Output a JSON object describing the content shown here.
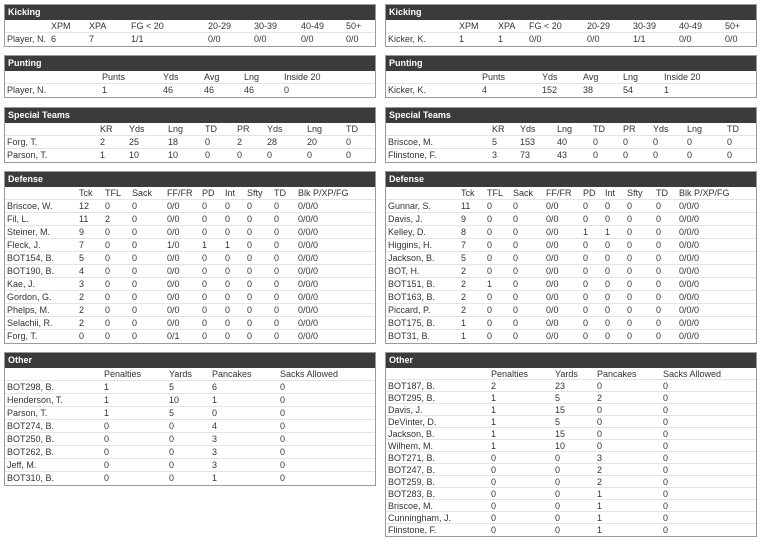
{
  "left": [
    {
      "title": "Kicking",
      "headers": [
        "XPM",
        "XPA",
        "FG < 20",
        "20-29",
        "30-39",
        "40-49",
        "50+"
      ],
      "rows": [
        [
          "Player, N.",
          "6",
          "7",
          "1/1",
          "0/0",
          "0/0",
          "0/0",
          "0/0"
        ]
      ]
    },
    {
      "title": "Punting",
      "headers": [
        "Punts",
        "Yds",
        "Avg",
        "Lng",
        "Inside 20"
      ],
      "rows": [
        [
          "Player, N.",
          "1",
          "46",
          "46",
          "46",
          "0"
        ]
      ]
    },
    {
      "title": "Special Teams",
      "headers": [
        "KR",
        "Yds",
        "Lng",
        "TD",
        "PR",
        "Yds",
        "Lng",
        "TD"
      ],
      "rows": [
        [
          "Forg, T.",
          "2",
          "25",
          "18",
          "0",
          "2",
          "28",
          "20",
          "0"
        ],
        [
          "Parson, T.",
          "1",
          "10",
          "10",
          "0",
          "0",
          "0",
          "0",
          "0"
        ]
      ]
    },
    {
      "title": "Defense",
      "headers": [
        "Tck",
        "TFL",
        "Sack",
        "FF/FR",
        "PD",
        "Int",
        "Sfty",
        "TD",
        "Blk P/XP/FG"
      ],
      "rows": [
        [
          "Briscoe, W.",
          "12",
          "0",
          "0",
          "0/0",
          "0",
          "0",
          "0",
          "0",
          "0/0/0"
        ],
        [
          "Fil, L.",
          "11",
          "2",
          "0",
          "0/0",
          "0",
          "0",
          "0",
          "0",
          "0/0/0"
        ],
        [
          "Steiner, M.",
          "9",
          "0",
          "0",
          "0/0",
          "0",
          "0",
          "0",
          "0",
          "0/0/0"
        ],
        [
          "Fleck, J.",
          "7",
          "0",
          "0",
          "1/0",
          "1",
          "1",
          "0",
          "0",
          "0/0/0"
        ],
        [
          "BOT154, B.",
          "5",
          "0",
          "0",
          "0/0",
          "0",
          "0",
          "0",
          "0",
          "0/0/0"
        ],
        [
          "BOT190, B.",
          "4",
          "0",
          "0",
          "0/0",
          "0",
          "0",
          "0",
          "0",
          "0/0/0"
        ],
        [
          "Kae, J.",
          "3",
          "0",
          "0",
          "0/0",
          "0",
          "0",
          "0",
          "0",
          "0/0/0"
        ],
        [
          "Gordon, G.",
          "2",
          "0",
          "0",
          "0/0",
          "0",
          "0",
          "0",
          "0",
          "0/0/0"
        ],
        [
          "Phelps, M.",
          "2",
          "0",
          "0",
          "0/0",
          "0",
          "0",
          "0",
          "0",
          "0/0/0"
        ],
        [
          "Selachii, R.",
          "2",
          "0",
          "0",
          "0/0",
          "0",
          "0",
          "0",
          "0",
          "0/0/0"
        ],
        [
          "Forg, T.",
          "0",
          "0",
          "0",
          "0/1",
          "0",
          "0",
          "0",
          "0",
          "0/0/0"
        ]
      ]
    },
    {
      "title": "Other",
      "headers": [
        "Penalties",
        "Yards",
        "Pancakes",
        "Sacks Allowed"
      ],
      "rows": [
        [
          "BOT298, B.",
          "1",
          "5",
          "6",
          "0"
        ],
        [
          "Henderson, T.",
          "1",
          "10",
          "1",
          "0"
        ],
        [
          "Parson, T.",
          "1",
          "5",
          "0",
          "0"
        ],
        [
          "BOT274, B.",
          "0",
          "0",
          "4",
          "0"
        ],
        [
          "BOT250, B.",
          "0",
          "0",
          "3",
          "0"
        ],
        [
          "BOT262, B.",
          "0",
          "0",
          "3",
          "0"
        ],
        [
          "Jeff, M.",
          "0",
          "0",
          "3",
          "0"
        ],
        [
          "BOT310, B.",
          "0",
          "0",
          "1",
          "0"
        ]
      ]
    }
  ],
  "right": [
    {
      "title": "Kicking",
      "headers": [
        "XPM",
        "XPA",
        "FG < 20",
        "20-29",
        "30-39",
        "40-49",
        "50+"
      ],
      "rows": [
        [
          "Kicker, K.",
          "1",
          "1",
          "0/0",
          "0/0",
          "1/1",
          "0/0",
          "0/0"
        ]
      ]
    },
    {
      "title": "Punting",
      "headers": [
        "Punts",
        "Yds",
        "Avg",
        "Lng",
        "Inside 20"
      ],
      "rows": [
        [
          "Kicker, K.",
          "4",
          "152",
          "38",
          "54",
          "1"
        ]
      ]
    },
    {
      "title": "Special Teams",
      "headers": [
        "KR",
        "Yds",
        "Lng",
        "TD",
        "PR",
        "Yds",
        "Lng",
        "TD"
      ],
      "rows": [
        [
          "Briscoe, M.",
          "5",
          "153",
          "40",
          "0",
          "0",
          "0",
          "0",
          "0"
        ],
        [
          "Flinstone, F.",
          "3",
          "73",
          "43",
          "0",
          "0",
          "0",
          "0",
          "0"
        ]
      ]
    },
    {
      "title": "Defense",
      "headers": [
        "Tck",
        "TFL",
        "Sack",
        "FF/FR",
        "PD",
        "Int",
        "Sfty",
        "TD",
        "Blk P/XP/FG"
      ],
      "rows": [
        [
          "Gunnar, S.",
          "11",
          "0",
          "0",
          "0/0",
          "0",
          "0",
          "0",
          "0",
          "0/0/0"
        ],
        [
          "Davis, J.",
          "9",
          "0",
          "0",
          "0/0",
          "0",
          "0",
          "0",
          "0",
          "0/0/0"
        ],
        [
          "Kelley, D.",
          "8",
          "0",
          "0",
          "0/0",
          "1",
          "1",
          "0",
          "0",
          "0/0/0"
        ],
        [
          "Higgins, H.",
          "7",
          "0",
          "0",
          "0/0",
          "0",
          "0",
          "0",
          "0",
          "0/0/0"
        ],
        [
          "Jackson, B.",
          "5",
          "0",
          "0",
          "0/0",
          "0",
          "0",
          "0",
          "0",
          "0/0/0"
        ],
        [
          "BOT, H.",
          "2",
          "0",
          "0",
          "0/0",
          "0",
          "0",
          "0",
          "0",
          "0/0/0"
        ],
        [
          "BOT151, B.",
          "2",
          "1",
          "0",
          "0/0",
          "0",
          "0",
          "0",
          "0",
          "0/0/0"
        ],
        [
          "BOT163, B.",
          "2",
          "0",
          "0",
          "0/0",
          "0",
          "0",
          "0",
          "0",
          "0/0/0"
        ],
        [
          "Piccard, P.",
          "2",
          "0",
          "0",
          "0/0",
          "0",
          "0",
          "0",
          "0",
          "0/0/0"
        ],
        [
          "BOT175, B.",
          "1",
          "0",
          "0",
          "0/0",
          "0",
          "0",
          "0",
          "0",
          "0/0/0"
        ],
        [
          "BOT31, B.",
          "1",
          "0",
          "0",
          "0/0",
          "0",
          "0",
          "0",
          "0",
          "0/0/0"
        ]
      ]
    },
    {
      "title": "Other",
      "headers": [
        "Penalties",
        "Yards",
        "Pancakes",
        "Sacks Allowed"
      ],
      "rows": [
        [
          "BOT187, B.",
          "2",
          "23",
          "0",
          "0"
        ],
        [
          "BOT295, B.",
          "1",
          "5",
          "2",
          "0"
        ],
        [
          "Davis, J.",
          "1",
          "15",
          "0",
          "0"
        ],
        [
          "DeVinter, D.",
          "1",
          "5",
          "0",
          "0"
        ],
        [
          "Jackson, B.",
          "1",
          "15",
          "0",
          "0"
        ],
        [
          "Wilhem, M.",
          "1",
          "10",
          "0",
          "0"
        ],
        [
          "BOT271, B.",
          "0",
          "0",
          "3",
          "0"
        ],
        [
          "BOT247, B.",
          "0",
          "0",
          "2",
          "0"
        ],
        [
          "BOT259, B.",
          "0",
          "0",
          "2",
          "0"
        ],
        [
          "BOT283, B.",
          "0",
          "0",
          "1",
          "0"
        ],
        [
          "Briscoe, M.",
          "0",
          "0",
          "1",
          "0"
        ],
        [
          "Cunningham, J.",
          "0",
          "0",
          "1",
          "0"
        ],
        [
          "Flinstone, F.",
          "0",
          "0",
          "1",
          "0"
        ]
      ]
    }
  ]
}
